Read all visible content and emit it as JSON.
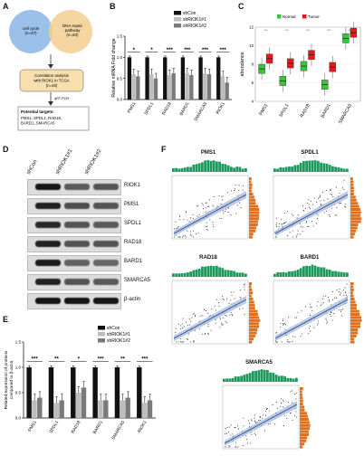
{
  "panel_labels": {
    "A": "A",
    "B": "B",
    "C": "C",
    "D": "D",
    "E": "E",
    "F": "F"
  },
  "panelA": {
    "circle_left": "cell cycle\n(n=47)",
    "circle_right": "DNA repair\npathway\n(n=40)",
    "box1": "Correlation analysis\nwith RIOK1 in TCGA\n(n=46)",
    "arrow_label": "qRT-PCR",
    "box2_title": "Potential targets:",
    "box2_body": "PMS1, SPDL1, RAD18,\nBARD1, SMARCA5"
  },
  "chart_data": [
    {
      "panel": "B",
      "type": "bar",
      "ylabel": "Relative mRNA Fold change",
      "ylim": [
        0,
        1.5
      ],
      "yticks": [
        "0.0",
        "0.5",
        "1.0",
        "1.5"
      ],
      "categories": [
        "PMS1",
        "SPDL1",
        "RAD18",
        "BARD1",
        "SMARCA5",
        "RIOK1"
      ],
      "series": [
        {
          "name": "shCon",
          "values": [
            1.0,
            1.0,
            1.0,
            1.0,
            1.0,
            1.0
          ]
        },
        {
          "name": "shRIOK1#1",
          "values": [
            0.6,
            0.6,
            0.58,
            0.62,
            0.62,
            0.55
          ]
        },
        {
          "name": "shRIOK1#2",
          "values": [
            0.55,
            0.5,
            0.62,
            0.58,
            0.6,
            0.4
          ]
        }
      ],
      "significance": [
        "*",
        "*",
        "***",
        "***",
        "***",
        "***"
      ]
    },
    {
      "panel": "C",
      "type": "box",
      "ylabel": "abundance",
      "ylim": [
        4,
        12
      ],
      "yticks": [
        "4",
        "6",
        "8",
        "10",
        "12"
      ],
      "categories": [
        "PMS1",
        "SPDL1",
        "RAD18",
        "BARD1",
        "SMARCA5"
      ],
      "series": [
        {
          "name": "Normal",
          "median": [
            7.5,
            6.2,
            7.8,
            5.8,
            10.8
          ]
        },
        {
          "name": "Tumor",
          "median": [
            8.6,
            8.1,
            9.0,
            7.7,
            11.4
          ]
        }
      ],
      "significance": [
        "***",
        "***",
        "***",
        "***",
        "***"
      ]
    },
    {
      "panel": "E",
      "type": "bar",
      "ylabel": "Related expression of proteins compared to β-actin",
      "ylim": [
        0,
        1.5
      ],
      "yticks": [
        "0.0",
        "0.5",
        "1.0",
        "1.5"
      ],
      "categories": [
        "PMS1",
        "SPDL1",
        "RAD18",
        "BARD1",
        "SMARCA5",
        "RIOK1"
      ],
      "series": [
        {
          "name": "shCon",
          "values": [
            1.0,
            1.0,
            1.0,
            1.0,
            1.0,
            1.0
          ]
        },
        {
          "name": "shRIOK1#1",
          "values": [
            0.35,
            0.3,
            0.5,
            0.35,
            0.35,
            0.3
          ]
        },
        {
          "name": "shRIOK1#2",
          "values": [
            0.4,
            0.35,
            0.6,
            0.35,
            0.4,
            0.35
          ]
        }
      ],
      "significance": [
        "***",
        "**",
        "*",
        "***",
        "**",
        "***"
      ]
    }
  ],
  "legend_colors": {
    "shCon": "#111111",
    "shRIOK1#1": "#bdbdbd",
    "shRIOK1#2": "#7a7a7a",
    "Normal": "#3cc33c",
    "Tumor": "#e11b1b"
  },
  "panelD": {
    "lanes": [
      "shCon",
      "shRIOK1#1",
      "shRIOK1#2"
    ],
    "blots": [
      "RIOK1",
      "PMS1",
      "SPDL1",
      "RAD18",
      "BARD1",
      "SMARCA5",
      "β-actin"
    ]
  },
  "panelF": {
    "titles": [
      "PMS1",
      "SPDL1",
      "RAD18",
      "BARD1",
      "SMARCA5"
    ]
  }
}
